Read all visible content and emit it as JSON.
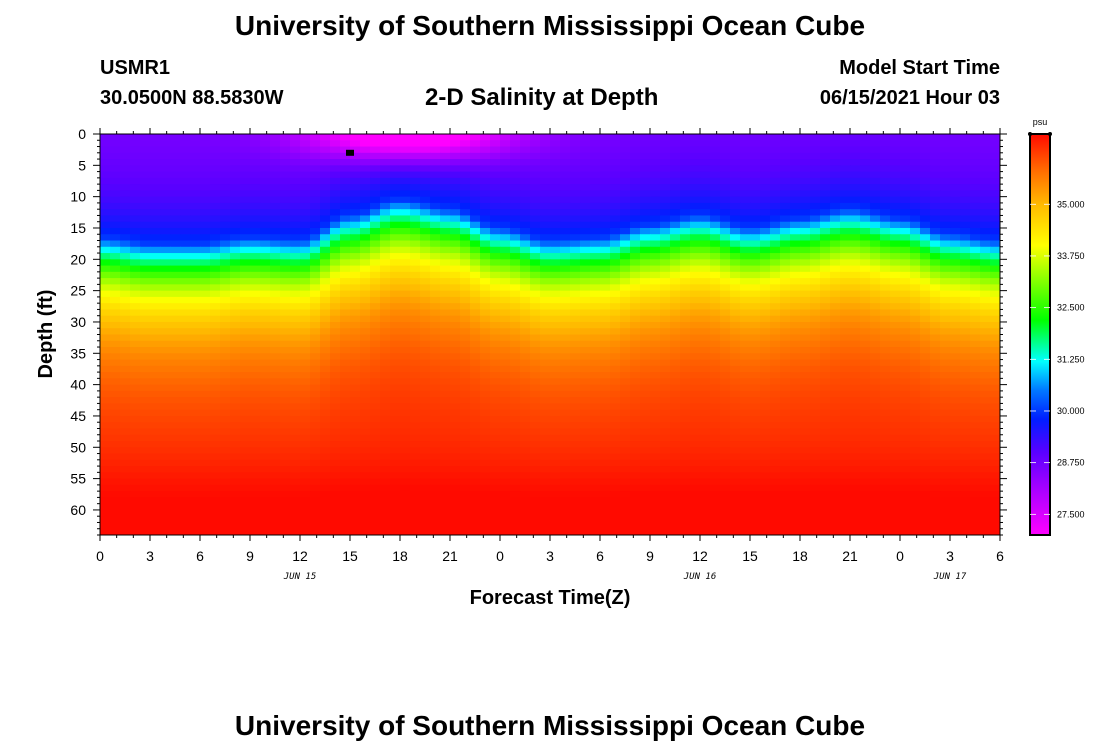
{
  "header": {
    "title_top": "University of Southern Mississippi Ocean Cube",
    "station": "USMR1",
    "coords": "30.0500N  88.5830W",
    "plot_title": "2-D Salinity at Depth",
    "model_start_label": "Model Start Time",
    "model_start_value": "06/15/2021 Hour 03",
    "title_bottom": "University of Southern Mississippi Ocean Cube"
  },
  "chart_data": {
    "type": "heatmap",
    "title": "2-D Salinity at Depth",
    "xlabel": "Forecast Time(Z)",
    "ylabel": "Depth (ft)",
    "x_tick_labels": [
      "0",
      "3",
      "6",
      "9",
      "12",
      "15",
      "18",
      "21",
      "0",
      "3",
      "6",
      "9",
      "12",
      "15",
      "18",
      "21",
      "0",
      "3",
      "6"
    ],
    "x_range_hours": [
      0,
      54
    ],
    "date_labels": [
      {
        "text": "JUN 15",
        "hour": 12
      },
      {
        "text": "JUN 16",
        "hour": 36
      },
      {
        "text": "JUN 17",
        "hour": 51
      }
    ],
    "y_tick_labels": [
      "0",
      "5",
      "10",
      "15",
      "20",
      "25",
      "30",
      "35",
      "40",
      "45",
      "50",
      "55",
      "60"
    ],
    "y_range_ft": [
      0,
      64
    ],
    "y_inverted": true,
    "colorbar": {
      "units": "psu",
      "range": [
        27.0,
        36.7
      ],
      "tick_labels": [
        "35.000",
        "33.750",
        "32.500",
        "31.250",
        "30.000",
        "28.750",
        "27.500"
      ],
      "tick_values": [
        35.0,
        33.75,
        32.5,
        31.25,
        30.0,
        28.75,
        27.5
      ]
    },
    "isohaline_30_depth_ft": {
      "hours": [
        0,
        3,
        6,
        9,
        12,
        15,
        18,
        21,
        24,
        27,
        30,
        33,
        36,
        39,
        42,
        45,
        48,
        51,
        54
      ],
      "depths": [
        16.5,
        17.5,
        17.5,
        16.5,
        17,
        13,
        10.5,
        12,
        15,
        17,
        16.5,
        14.5,
        13,
        15,
        13.5,
        12,
        13.5,
        16,
        17
      ]
    },
    "marker": {
      "hour": 15,
      "depth_ft": 3
    }
  }
}
